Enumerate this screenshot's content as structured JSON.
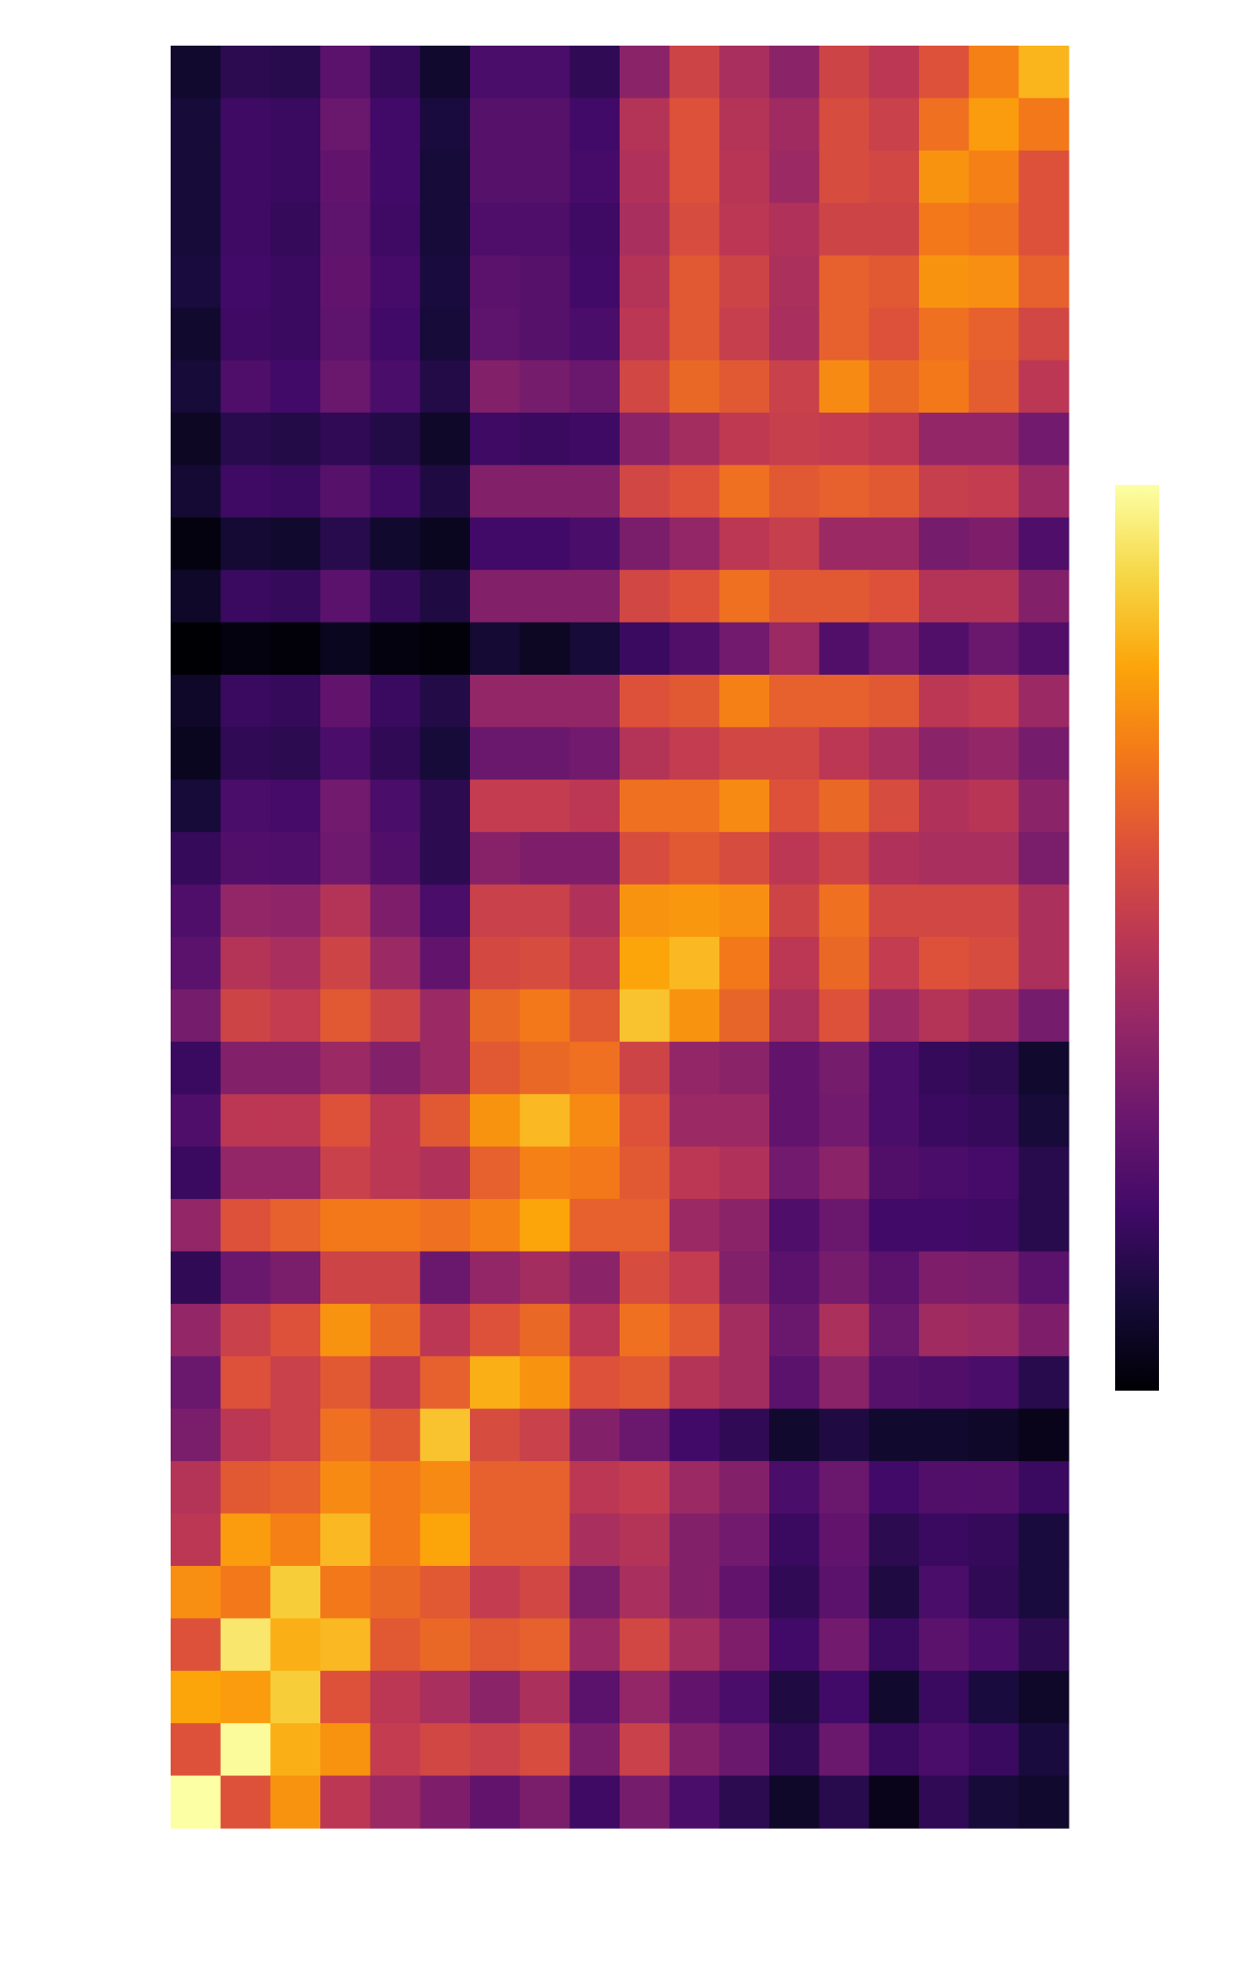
{
  "chart_data": {
    "type": "heatmap",
    "title": "",
    "xlabel": "",
    "ylabel": "",
    "colormap": "inferno",
    "vmin": 0,
    "vmax": 1,
    "axes_visible": false,
    "grid": false,
    "colorbar": {
      "position": "right",
      "ticks_visible": false
    },
    "n_rows": 34,
    "n_cols": 18,
    "values": [
      [
        0.08,
        0.15,
        0.14,
        0.26,
        0.17,
        0.08,
        0.22,
        0.22,
        0.16,
        0.38,
        0.55,
        0.45,
        0.38,
        0.55,
        0.5,
        0.6,
        0.72,
        0.83
      ],
      [
        0.1,
        0.19,
        0.18,
        0.3,
        0.2,
        0.11,
        0.25,
        0.25,
        0.2,
        0.48,
        0.6,
        0.48,
        0.43,
        0.58,
        0.54,
        0.68,
        0.78,
        0.7
      ],
      [
        0.1,
        0.19,
        0.18,
        0.28,
        0.2,
        0.1,
        0.25,
        0.25,
        0.21,
        0.47,
        0.6,
        0.49,
        0.42,
        0.58,
        0.56,
        0.76,
        0.72,
        0.6
      ],
      [
        0.1,
        0.19,
        0.17,
        0.27,
        0.19,
        0.1,
        0.23,
        0.23,
        0.19,
        0.45,
        0.58,
        0.5,
        0.47,
        0.55,
        0.55,
        0.7,
        0.68,
        0.6
      ],
      [
        0.11,
        0.2,
        0.18,
        0.28,
        0.21,
        0.11,
        0.26,
        0.25,
        0.2,
        0.48,
        0.62,
        0.55,
        0.46,
        0.64,
        0.62,
        0.76,
        0.75,
        0.64
      ],
      [
        0.08,
        0.19,
        0.18,
        0.27,
        0.2,
        0.1,
        0.27,
        0.25,
        0.22,
        0.5,
        0.62,
        0.53,
        0.45,
        0.64,
        0.6,
        0.68,
        0.64,
        0.56
      ],
      [
        0.1,
        0.23,
        0.2,
        0.3,
        0.22,
        0.13,
        0.36,
        0.33,
        0.3,
        0.56,
        0.66,
        0.62,
        0.54,
        0.74,
        0.66,
        0.7,
        0.63,
        0.5
      ],
      [
        0.06,
        0.14,
        0.13,
        0.16,
        0.13,
        0.07,
        0.19,
        0.18,
        0.19,
        0.38,
        0.44,
        0.51,
        0.53,
        0.52,
        0.5,
        0.4,
        0.4,
        0.32
      ],
      [
        0.09,
        0.19,
        0.18,
        0.25,
        0.19,
        0.12,
        0.36,
        0.36,
        0.36,
        0.56,
        0.6,
        0.68,
        0.62,
        0.64,
        0.62,
        0.53,
        0.52,
        0.42
      ],
      [
        0.02,
        0.09,
        0.08,
        0.14,
        0.08,
        0.05,
        0.2,
        0.2,
        0.22,
        0.34,
        0.4,
        0.5,
        0.53,
        0.42,
        0.42,
        0.33,
        0.35,
        0.23
      ],
      [
        0.07,
        0.18,
        0.17,
        0.26,
        0.17,
        0.12,
        0.36,
        0.36,
        0.36,
        0.56,
        0.6,
        0.68,
        0.62,
        0.62,
        0.6,
        0.48,
        0.48,
        0.36
      ],
      [
        0.0,
        0.02,
        0.01,
        0.05,
        0.02,
        0.01,
        0.09,
        0.06,
        0.1,
        0.18,
        0.24,
        0.32,
        0.42,
        0.24,
        0.32,
        0.24,
        0.3,
        0.24
      ],
      [
        0.07,
        0.18,
        0.17,
        0.28,
        0.18,
        0.13,
        0.4,
        0.4,
        0.4,
        0.6,
        0.62,
        0.72,
        0.64,
        0.64,
        0.62,
        0.5,
        0.52,
        0.42
      ],
      [
        0.05,
        0.16,
        0.15,
        0.22,
        0.16,
        0.1,
        0.3,
        0.3,
        0.32,
        0.48,
        0.52,
        0.56,
        0.56,
        0.5,
        0.45,
        0.38,
        0.4,
        0.33
      ],
      [
        0.1,
        0.22,
        0.21,
        0.32,
        0.22,
        0.15,
        0.52,
        0.52,
        0.5,
        0.68,
        0.68,
        0.74,
        0.6,
        0.66,
        0.58,
        0.47,
        0.49,
        0.38
      ],
      [
        0.17,
        0.24,
        0.23,
        0.31,
        0.24,
        0.15,
        0.37,
        0.35,
        0.35,
        0.58,
        0.62,
        0.58,
        0.5,
        0.55,
        0.47,
        0.45,
        0.45,
        0.34
      ],
      [
        0.23,
        0.4,
        0.39,
        0.48,
        0.35,
        0.22,
        0.54,
        0.54,
        0.47,
        0.76,
        0.77,
        0.75,
        0.55,
        0.68,
        0.56,
        0.56,
        0.56,
        0.46
      ],
      [
        0.26,
        0.48,
        0.45,
        0.55,
        0.42,
        0.28,
        0.57,
        0.58,
        0.52,
        0.8,
        0.84,
        0.7,
        0.5,
        0.66,
        0.52,
        0.6,
        0.58,
        0.46
      ],
      [
        0.33,
        0.55,
        0.52,
        0.62,
        0.55,
        0.42,
        0.66,
        0.7,
        0.62,
        0.86,
        0.76,
        0.65,
        0.46,
        0.6,
        0.42,
        0.48,
        0.43,
        0.33
      ],
      [
        0.18,
        0.36,
        0.36,
        0.42,
        0.36,
        0.42,
        0.62,
        0.66,
        0.68,
        0.55,
        0.4,
        0.38,
        0.28,
        0.33,
        0.22,
        0.17,
        0.15,
        0.08
      ],
      [
        0.23,
        0.5,
        0.5,
        0.6,
        0.5,
        0.62,
        0.76,
        0.84,
        0.74,
        0.6,
        0.42,
        0.42,
        0.28,
        0.32,
        0.22,
        0.18,
        0.17,
        0.1
      ],
      [
        0.18,
        0.4,
        0.4,
        0.54,
        0.5,
        0.47,
        0.64,
        0.72,
        0.7,
        0.62,
        0.5,
        0.47,
        0.32,
        0.38,
        0.24,
        0.22,
        0.21,
        0.14
      ],
      [
        0.4,
        0.6,
        0.64,
        0.7,
        0.7,
        0.68,
        0.72,
        0.8,
        0.64,
        0.64,
        0.42,
        0.38,
        0.23,
        0.3,
        0.2,
        0.2,
        0.19,
        0.14
      ],
      [
        0.16,
        0.3,
        0.34,
        0.55,
        0.55,
        0.3,
        0.4,
        0.44,
        0.38,
        0.58,
        0.52,
        0.36,
        0.26,
        0.33,
        0.26,
        0.35,
        0.34,
        0.26
      ],
      [
        0.4,
        0.54,
        0.6,
        0.76,
        0.66,
        0.5,
        0.6,
        0.66,
        0.5,
        0.68,
        0.62,
        0.44,
        0.3,
        0.46,
        0.3,
        0.43,
        0.42,
        0.35
      ],
      [
        0.3,
        0.6,
        0.54,
        0.62,
        0.5,
        0.64,
        0.82,
        0.76,
        0.6,
        0.62,
        0.48,
        0.44,
        0.26,
        0.38,
        0.25,
        0.24,
        0.22,
        0.14
      ],
      [
        0.34,
        0.5,
        0.54,
        0.68,
        0.62,
        0.86,
        0.58,
        0.54,
        0.36,
        0.3,
        0.2,
        0.16,
        0.08,
        0.12,
        0.08,
        0.08,
        0.07,
        0.04
      ],
      [
        0.48,
        0.62,
        0.64,
        0.74,
        0.7,
        0.74,
        0.64,
        0.64,
        0.5,
        0.52,
        0.42,
        0.36,
        0.22,
        0.3,
        0.2,
        0.24,
        0.24,
        0.18
      ],
      [
        0.5,
        0.78,
        0.72,
        0.84,
        0.7,
        0.8,
        0.64,
        0.64,
        0.45,
        0.48,
        0.36,
        0.32,
        0.18,
        0.28,
        0.15,
        0.18,
        0.17,
        0.11
      ],
      [
        0.75,
        0.7,
        0.88,
        0.7,
        0.66,
        0.62,
        0.52,
        0.56,
        0.34,
        0.45,
        0.36,
        0.28,
        0.16,
        0.26,
        0.12,
        0.22,
        0.16,
        0.11
      ],
      [
        0.6,
        0.94,
        0.82,
        0.84,
        0.62,
        0.66,
        0.62,
        0.64,
        0.42,
        0.56,
        0.44,
        0.35,
        0.2,
        0.32,
        0.18,
        0.26,
        0.22,
        0.15
      ],
      [
        0.8,
        0.78,
        0.88,
        0.6,
        0.5,
        0.45,
        0.38,
        0.46,
        0.26,
        0.4,
        0.28,
        0.22,
        0.12,
        0.2,
        0.08,
        0.18,
        0.11,
        0.07
      ],
      [
        0.6,
        0.99,
        0.82,
        0.76,
        0.52,
        0.56,
        0.54,
        0.58,
        0.34,
        0.54,
        0.36,
        0.3,
        0.16,
        0.3,
        0.18,
        0.22,
        0.18,
        0.11
      ],
      [
        1.0,
        0.6,
        0.76,
        0.5,
        0.42,
        0.35,
        0.28,
        0.34,
        0.19,
        0.33,
        0.22,
        0.15,
        0.07,
        0.14,
        0.04,
        0.16,
        0.1,
        0.08
      ]
    ]
  }
}
